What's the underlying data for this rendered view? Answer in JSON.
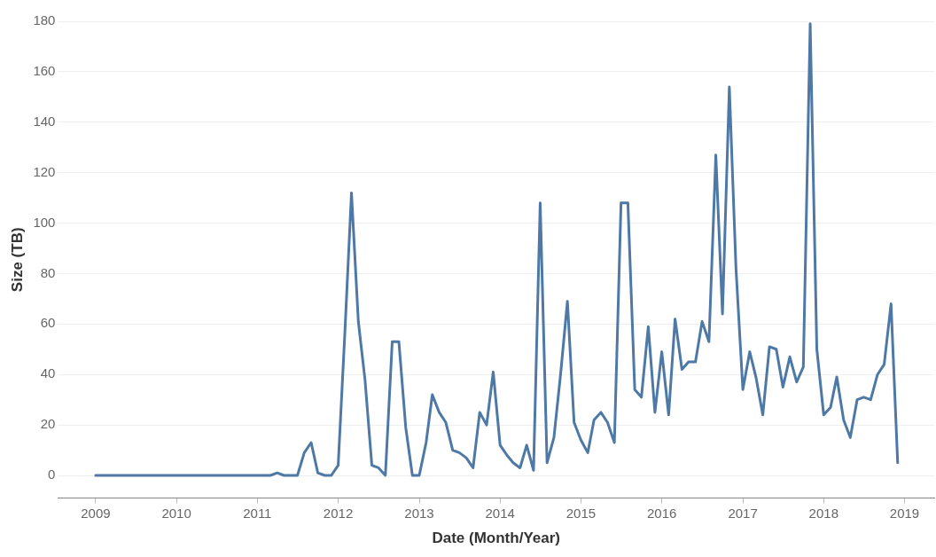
{
  "chart_data": {
    "type": "line",
    "xlabel": "Date (Month/Year)",
    "ylabel": "Size (TB)",
    "x": [
      "2009-01",
      "2009-02",
      "2009-03",
      "2009-04",
      "2009-05",
      "2009-06",
      "2009-07",
      "2009-08",
      "2009-09",
      "2009-10",
      "2009-11",
      "2009-12",
      "2010-01",
      "2010-02",
      "2010-03",
      "2010-04",
      "2010-05",
      "2010-06",
      "2010-07",
      "2010-08",
      "2010-09",
      "2010-10",
      "2010-11",
      "2010-12",
      "2011-01",
      "2011-02",
      "2011-03",
      "2011-04",
      "2011-05",
      "2011-06",
      "2011-07",
      "2011-08",
      "2011-09",
      "2011-10",
      "2011-11",
      "2011-12",
      "2012-01",
      "2012-02",
      "2012-03",
      "2012-04",
      "2012-05",
      "2012-06",
      "2012-07",
      "2012-08",
      "2012-09",
      "2012-10",
      "2012-11",
      "2012-12",
      "2013-01",
      "2013-02",
      "2013-03",
      "2013-04",
      "2013-05",
      "2013-06",
      "2013-07",
      "2013-08",
      "2013-09",
      "2013-10",
      "2013-11",
      "2013-12",
      "2014-01",
      "2014-02",
      "2014-03",
      "2014-04",
      "2014-05",
      "2014-06",
      "2014-07",
      "2014-08",
      "2014-09",
      "2014-10",
      "2014-11",
      "2014-12",
      "2015-01",
      "2015-02",
      "2015-03",
      "2015-04",
      "2015-05",
      "2015-06",
      "2015-07",
      "2015-08",
      "2015-09",
      "2015-10",
      "2015-11",
      "2015-12",
      "2016-01",
      "2016-02",
      "2016-03",
      "2016-04",
      "2016-05",
      "2016-06",
      "2016-07",
      "2016-08",
      "2016-09",
      "2016-10",
      "2016-11",
      "2016-12",
      "2017-01",
      "2017-02",
      "2017-03",
      "2017-04",
      "2017-05",
      "2017-06",
      "2017-07",
      "2017-08",
      "2017-09",
      "2017-10",
      "2017-11",
      "2017-12",
      "2018-01",
      "2018-02",
      "2018-03",
      "2018-04",
      "2018-05",
      "2018-06",
      "2018-07",
      "2018-08",
      "2018-09",
      "2018-10",
      "2018-11",
      "2018-12"
    ],
    "series": [
      {
        "color": "#4e79a7",
        "values": [
          0,
          0,
          0,
          0,
          0,
          0,
          0,
          0,
          0,
          0,
          0,
          0,
          0,
          0,
          0,
          0,
          0,
          0,
          0,
          0,
          0,
          0,
          0,
          0,
          0,
          0,
          0,
          1,
          0,
          0,
          0,
          9,
          13,
          1,
          0,
          0,
          4,
          58,
          112,
          61,
          38,
          4,
          3,
          0,
          53,
          53,
          19,
          0,
          0,
          13,
          32,
          25,
          21,
          10,
          9,
          7,
          3,
          25,
          20,
          41,
          12,
          8,
          5,
          3,
          12,
          2,
          108,
          5,
          15,
          40,
          69,
          21,
          14,
          9,
          22,
          25,
          21,
          13,
          108,
          108,
          34,
          31,
          59,
          25,
          49,
          24,
          62,
          42,
          45,
          45,
          61,
          53,
          127,
          64,
          154,
          82,
          34,
          49,
          39,
          24,
          51,
          50,
          35,
          47,
          37,
          43,
          179,
          50,
          24,
          27,
          39,
          22,
          15,
          30,
          31,
          30,
          40,
          44,
          68,
          5
        ]
      }
    ],
    "xlim": [
      "2008-07-15",
      "2019-05-15"
    ],
    "xticks": [
      "2009",
      "2010",
      "2011",
      "2012",
      "2013",
      "2014",
      "2015",
      "2016",
      "2017",
      "2018",
      "2019"
    ],
    "ylim": [
      -9,
      180
    ],
    "yticks": [
      0,
      20,
      40,
      60,
      80,
      100,
      120,
      140,
      160,
      180
    ],
    "grid": "y",
    "legend": false,
    "marker": "none",
    "line_style": "solid"
  }
}
